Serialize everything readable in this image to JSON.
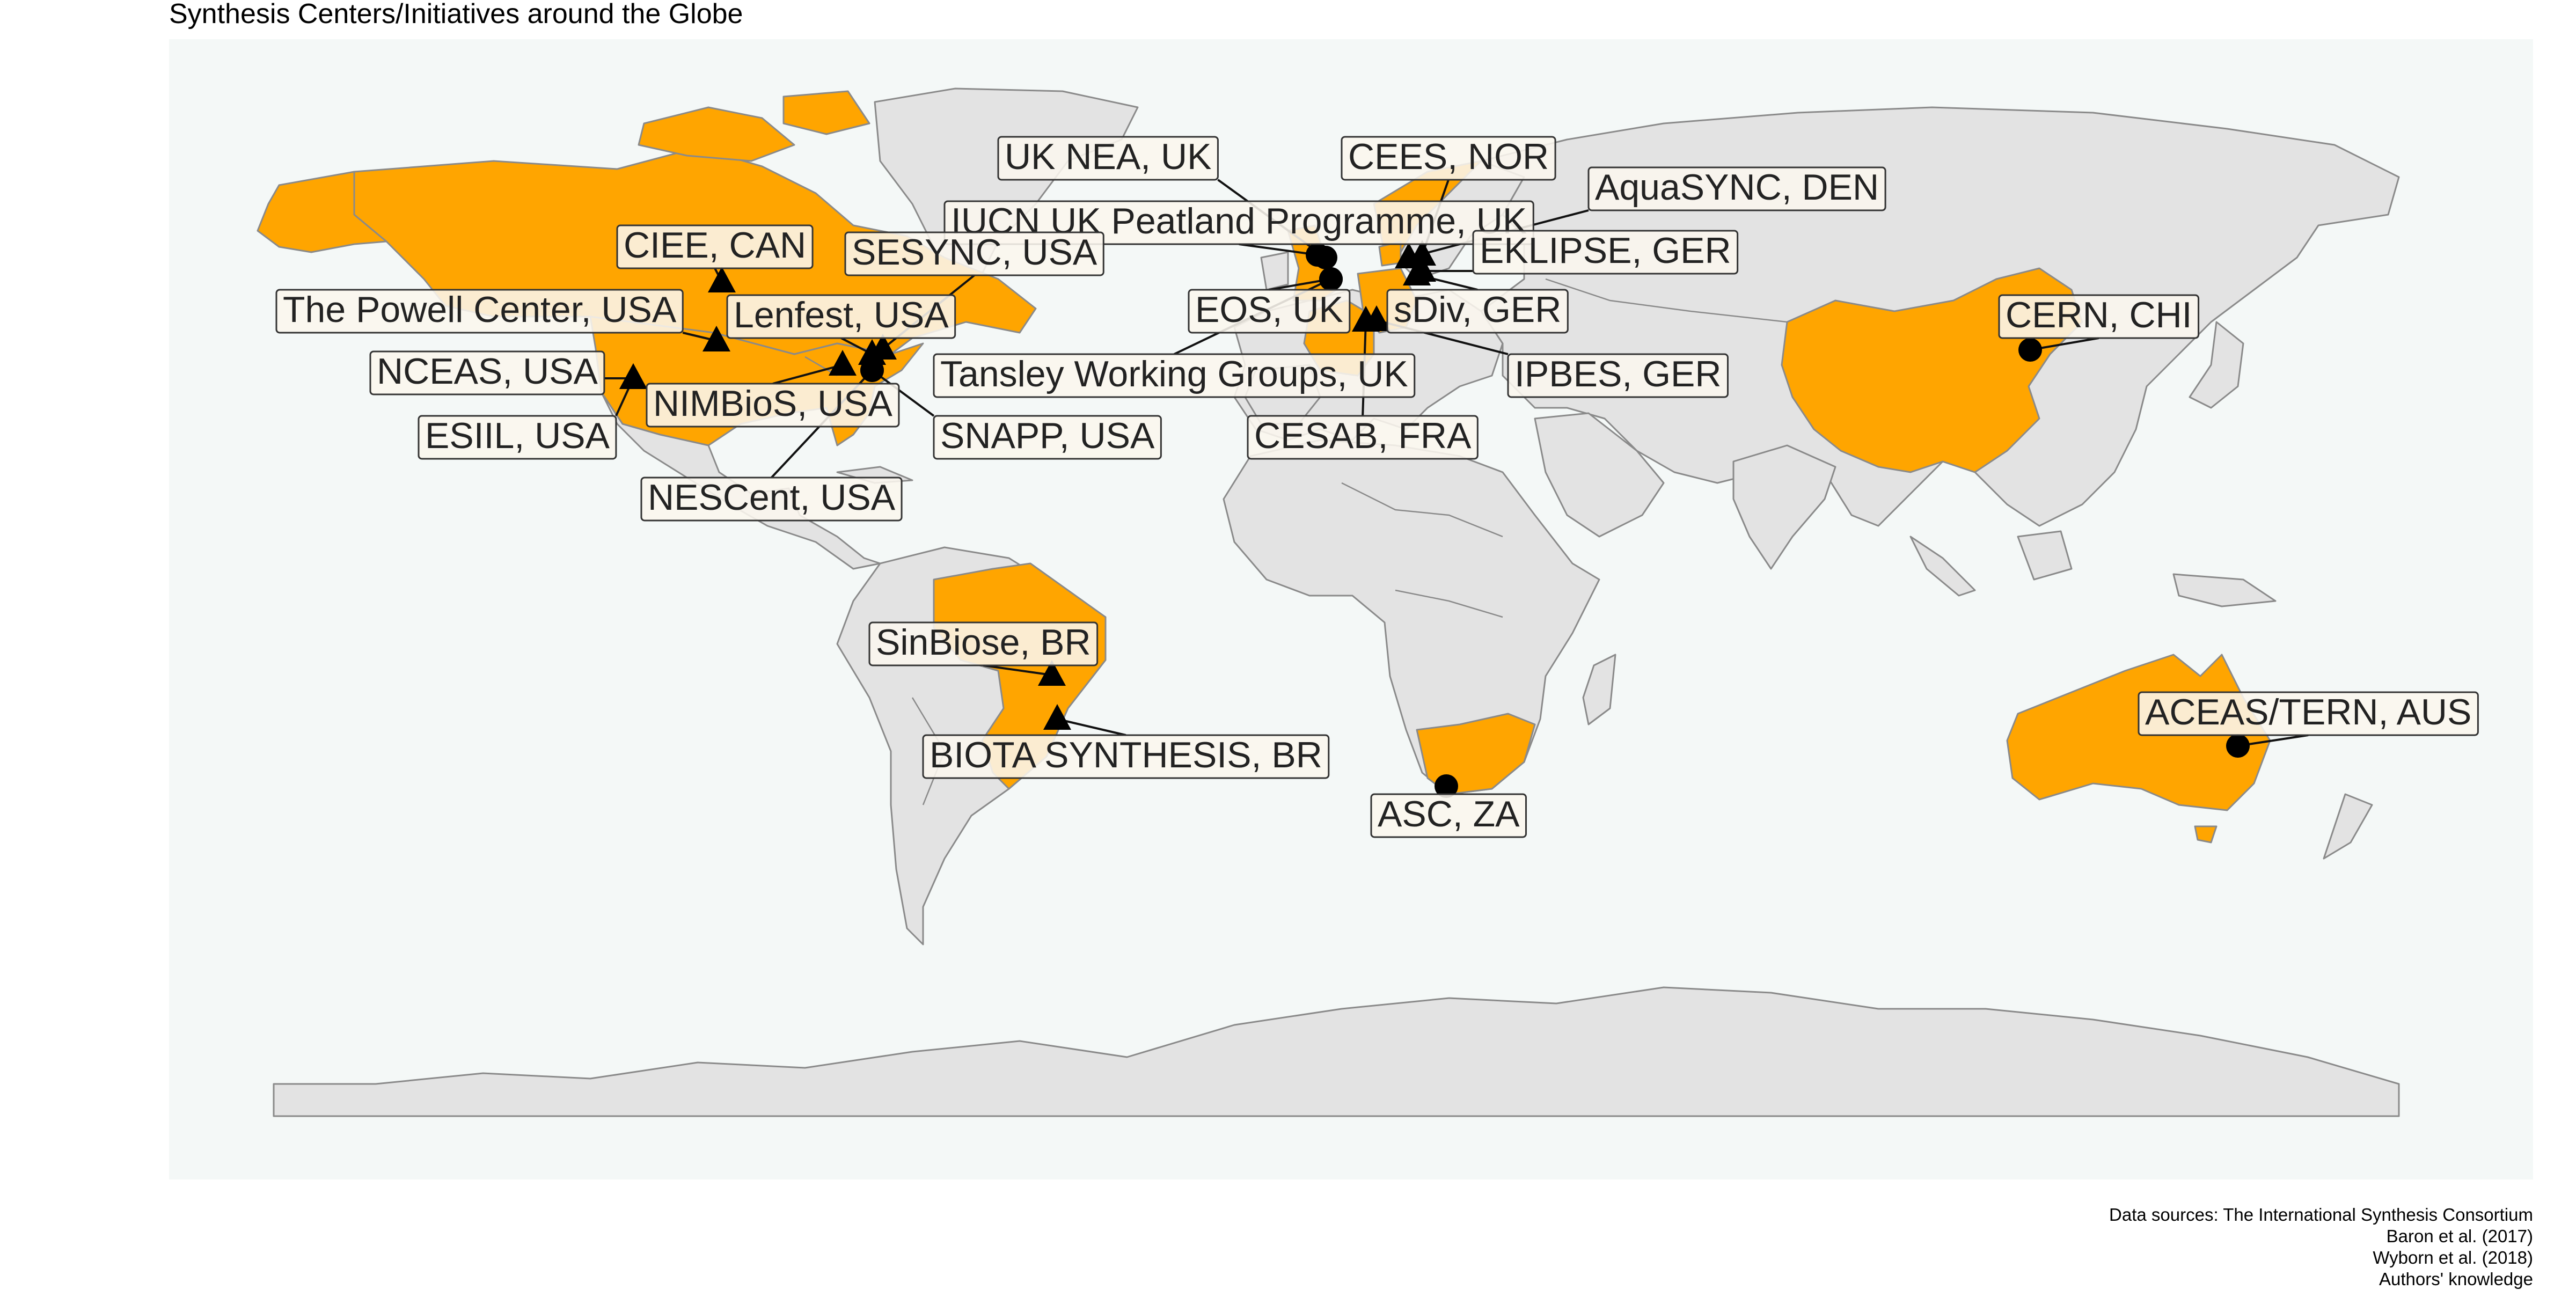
{
  "title": "Synthesis Centers/Initiatives around the Globe",
  "colors": {
    "ocean": "#f4f8f7",
    "land": "#e3e3e3",
    "highlight_country": "#ffa500",
    "marker": "#000000"
  },
  "highlighted_countries": [
    "Canada",
    "United States",
    "Brazil",
    "China",
    "Australia",
    "South Africa",
    "United Kingdom",
    "France",
    "Germany",
    "Denmark",
    "Norway"
  ],
  "chart_data": {
    "type": "map",
    "markers": [
      {
        "label": "UK NEA, UK",
        "shape": "circle",
        "lon": -1.5,
        "lat": 53.0
      },
      {
        "label": "CEES, NOR",
        "shape": "triangle",
        "lon": 10.7,
        "lat": 59.9
      },
      {
        "label": "AquaSYNC, DEN",
        "shape": "triangle",
        "lon": 10.2,
        "lat": 56.2
      },
      {
        "label": "IUCN UK Peatland Programme, UK",
        "shape": "circle",
        "lon": -3.2,
        "lat": 55.9
      },
      {
        "label": "EKLIPSE, GER",
        "shape": "triangle",
        "lon": 12.4,
        "lat": 51.3
      },
      {
        "label": "CIEE, CAN",
        "shape": "triangle",
        "lon": -114.1,
        "lat": 51.0
      },
      {
        "label": "SESYNC, USA",
        "shape": "triangle",
        "lon": -76.8,
        "lat": 39.0
      },
      {
        "label": "The Powell Center, USA",
        "shape": "triangle",
        "lon": -105.1,
        "lat": 40.6
      },
      {
        "label": "Lenfest, USA",
        "shape": "triangle",
        "lon": -77.0,
        "lat": 38.9
      },
      {
        "label": "NCEAS, USA",
        "shape": "triangle",
        "lon": -119.7,
        "lat": 34.4
      },
      {
        "label": "NIMBioS, USA",
        "shape": "triangle",
        "lon": -83.9,
        "lat": 35.9
      },
      {
        "label": "ESIIL, USA",
        "shape": "triangle",
        "lon": -105.3,
        "lat": 40.0
      },
      {
        "label": "SNAPP, USA",
        "shape": "circle",
        "lon": -78.9,
        "lat": 36.0
      },
      {
        "label": "NESCent, USA",
        "shape": "circle",
        "lon": -78.9,
        "lat": 36.0
      },
      {
        "label": "EOS, UK",
        "shape": "circle",
        "lon": -1.3,
        "lat": 51.8
      },
      {
        "label": "sDiv, GER",
        "shape": "triangle",
        "lon": 12.4,
        "lat": 51.3
      },
      {
        "label": "Tansley Working Groups, UK",
        "shape": "circle",
        "lon": -1.3,
        "lat": 51.8
      },
      {
        "label": "IPBES, GER",
        "shape": "triangle",
        "lon": 7.1,
        "lat": 50.7
      },
      {
        "label": "CESAB, FRA",
        "shape": "triangle",
        "lon": 5.4,
        "lat": 43.5
      },
      {
        "label": "CERN, CHI",
        "shape": "circle",
        "lon": 116.4,
        "lat": 39.9
      },
      {
        "label": "SinBiose, BR",
        "shape": "triangle",
        "lon": -47.9,
        "lat": -15.8
      },
      {
        "label": "BIOTA SYNTHESIS, BR",
        "shape": "triangle",
        "lon": -47.1,
        "lat": -22.9
      },
      {
        "label": "ASC, ZA",
        "shape": "circle",
        "lon": 18.9,
        "lat": -33.9
      },
      {
        "label": "ACEAS/TERN, AUS",
        "shape": "circle",
        "lon": 153.0,
        "lat": -27.5
      }
    ]
  },
  "sources": [
    "Data sources: The International Synthesis Consortium",
    "Baron et al. (2017)",
    "Wyborn et al. (2018)",
    "Authors' knowledge"
  ]
}
